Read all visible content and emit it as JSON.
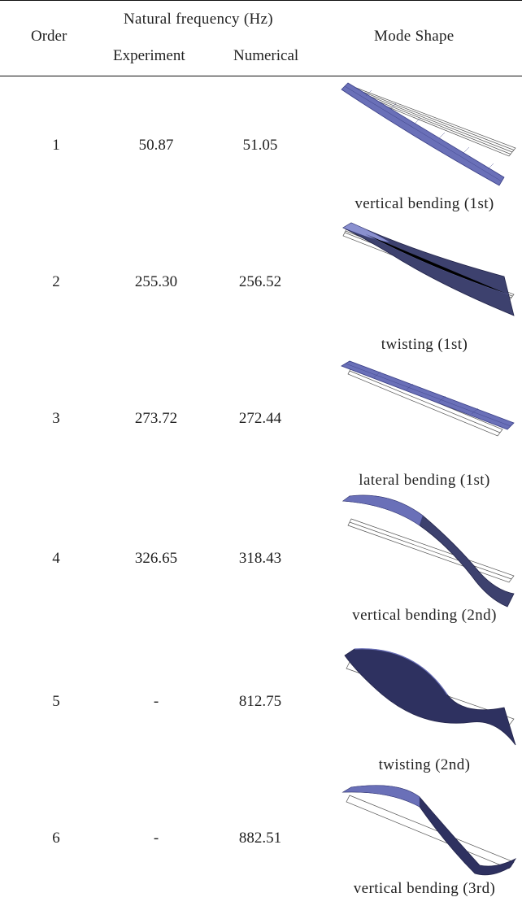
{
  "header": {
    "order": "Order",
    "natural_frequency": "Natural frequency (Hz)",
    "experiment": "Experiment",
    "numerical": "Numerical",
    "mode_shape": "Mode Shape"
  },
  "rows": [
    {
      "order": "1",
      "experiment": "50.87",
      "numerical": "51.05",
      "mode_shape": "vertical bending (1st)"
    },
    {
      "order": "2",
      "experiment": "255.30",
      "numerical": "256.52",
      "mode_shape": "twisting (1st)"
    },
    {
      "order": "3",
      "experiment": "273.72",
      "numerical": "272.44",
      "mode_shape": "lateral bending (1st)"
    },
    {
      "order": "4",
      "experiment": "326.65",
      "numerical": "318.43",
      "mode_shape": "vertical bending (2nd)"
    },
    {
      "order": "5",
      "experiment": "-",
      "numerical": "812.75",
      "mode_shape": "twisting (2nd)"
    },
    {
      "order": "6",
      "experiment": "-",
      "numerical": "882.51",
      "mode_shape": "vertical bending (3rd)"
    }
  ],
  "colors": {
    "rule": "#111111",
    "mesh_fill": "#6a70b8",
    "mesh_dark": "#22244a",
    "mesh_line": "#3a3f86",
    "undeformed": "#555555"
  }
}
